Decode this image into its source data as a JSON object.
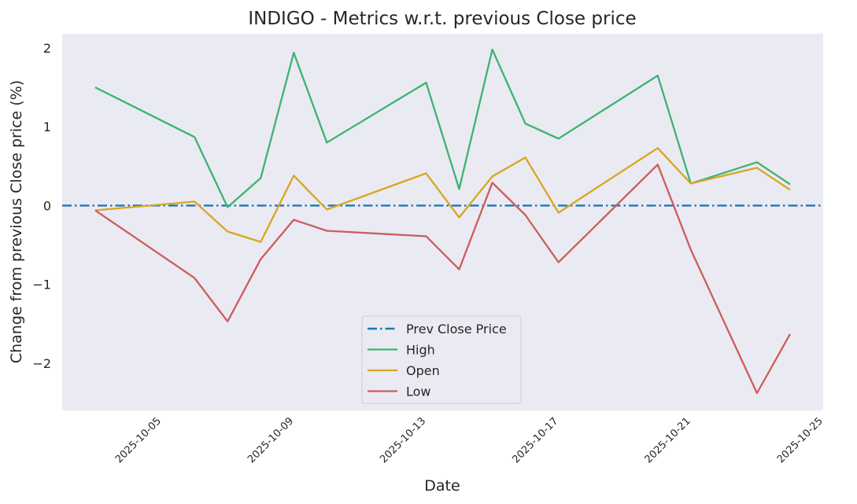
{
  "chart_data": {
    "type": "line",
    "title": "INDIGO - Metrics w.r.t. previous Close price",
    "xlabel": "Date",
    "ylabel": "Change from previous Close price (%)",
    "x_ticks": [
      "2025-10-05",
      "2025-10-09",
      "2025-10-13",
      "2025-10-17",
      "2025-10-21",
      "2025-10-25"
    ],
    "y_ticks": [
      2,
      1,
      0,
      -1,
      -2
    ],
    "y_tick_labels": [
      "2",
      "1",
      "0",
      "−1",
      "−2"
    ],
    "xlim": [
      "2025-10-02",
      "2025-10-25"
    ],
    "ylim": [
      -2.6,
      2.18
    ],
    "grid": false,
    "legend_position": "lower-center",
    "x": [
      "2025-10-03",
      "2025-10-06",
      "2025-10-07",
      "2025-10-08",
      "2025-10-09",
      "2025-10-10",
      "2025-10-13",
      "2025-10-14",
      "2025-10-15",
      "2025-10-16",
      "2025-10-17",
      "2025-10-20",
      "2025-10-21",
      "2025-10-23",
      "2025-10-24"
    ],
    "series": [
      {
        "name": "Prev Close Price",
        "style": "dashdot",
        "color": "#1f77b4",
        "values": [
          0,
          0,
          0,
          0,
          0,
          0,
          0,
          0,
          0,
          0,
          0,
          0,
          0,
          0,
          0
        ]
      },
      {
        "name": "High",
        "style": "solid",
        "color": "#3cb371",
        "values": [
          1.5,
          0.87,
          -0.02,
          0.35,
          1.94,
          0.8,
          1.56,
          0.21,
          1.98,
          1.04,
          0.85,
          1.65,
          0.28,
          0.55,
          0.27
        ]
      },
      {
        "name": "Open",
        "style": "solid",
        "color": "#daa520",
        "values": [
          -0.06,
          0.05,
          -0.33,
          -0.46,
          0.38,
          -0.05,
          0.41,
          -0.15,
          0.37,
          0.61,
          -0.09,
          0.73,
          0.28,
          0.48,
          0.2
        ]
      },
      {
        "name": "Low",
        "style": "solid",
        "color": "#cd5c5c",
        "values": [
          -0.06,
          -0.92,
          -1.47,
          -0.68,
          -0.18,
          -0.32,
          -0.39,
          -0.81,
          0.29,
          -0.12,
          -0.72,
          0.52,
          -0.56,
          -2.38,
          -1.63
        ]
      }
    ]
  }
}
